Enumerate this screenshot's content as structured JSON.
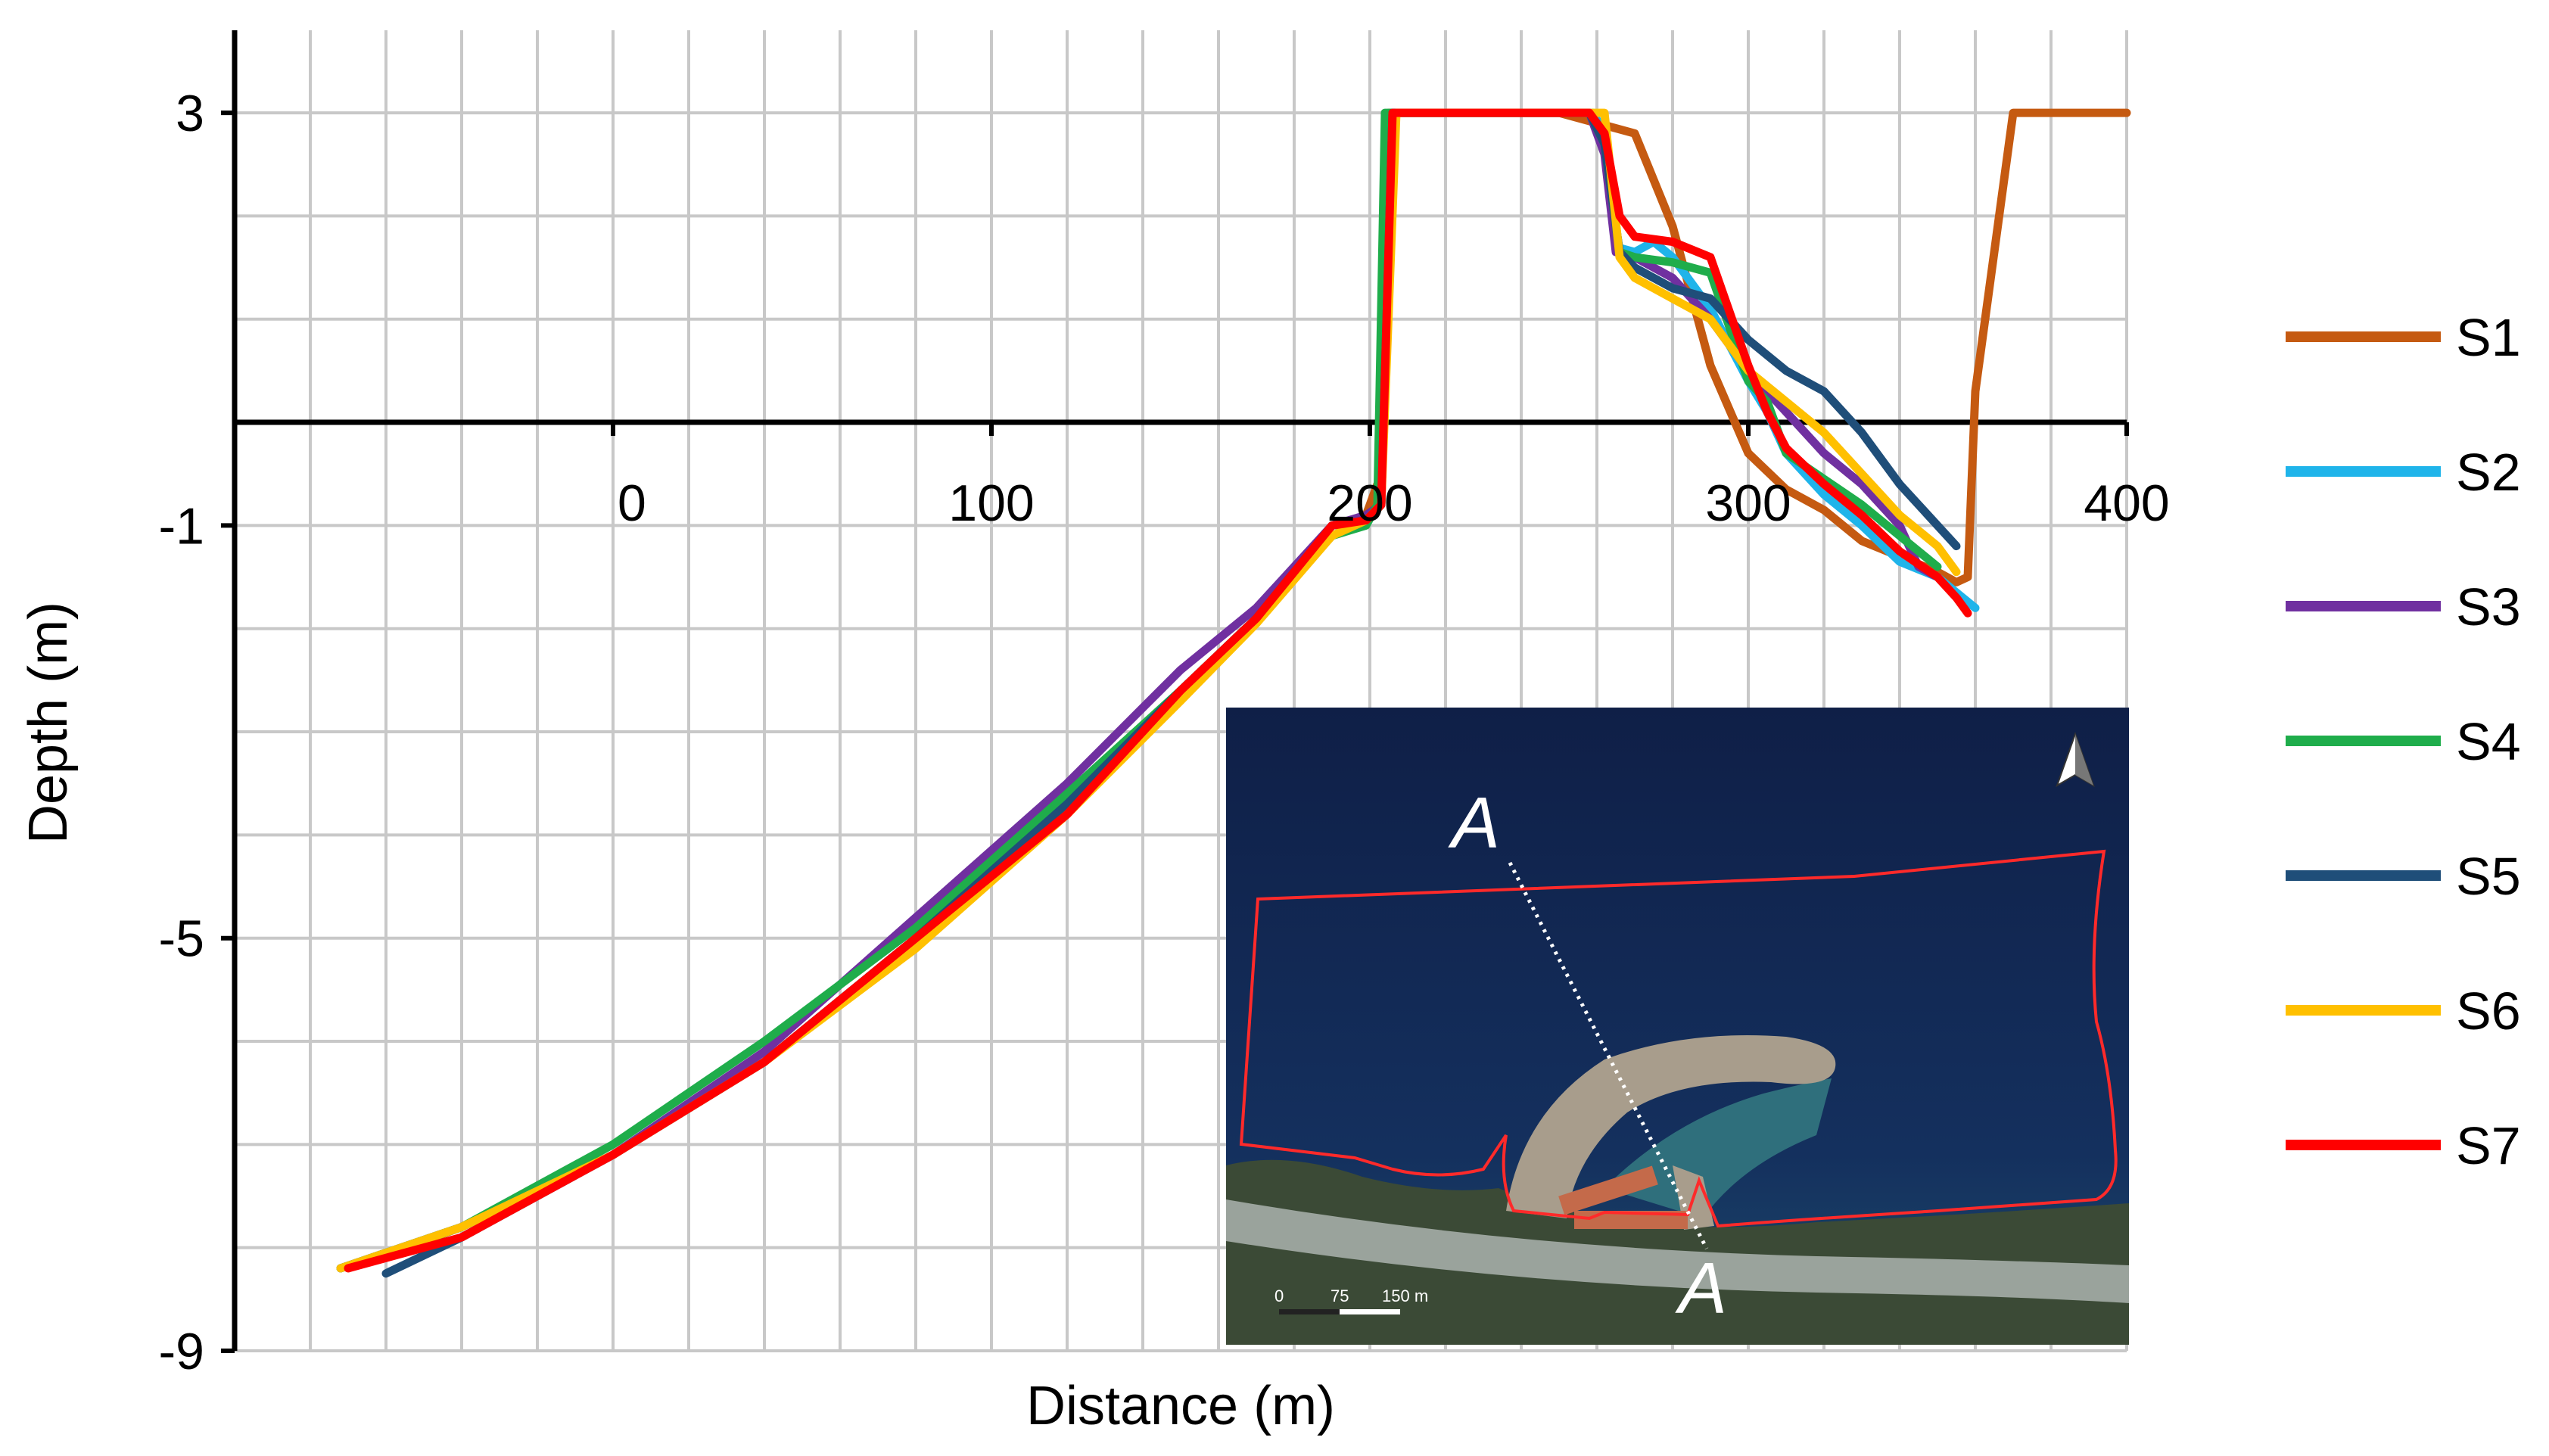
{
  "chart_data": {
    "type": "line",
    "xlabel": "Distance (m)",
    "ylabel": "Depth (m)",
    "xlim": [
      -100,
      400
    ],
    "ylim": [
      -9,
      3.8
    ],
    "x_ticks": [
      {
        "value": 0,
        "label": "0"
      },
      {
        "value": 100,
        "label": "100"
      },
      {
        "value": 200,
        "label": "200"
      },
      {
        "value": 300,
        "label": "300"
      },
      {
        "value": 400,
        "label": "400"
      }
    ],
    "y_ticks": [
      {
        "value": 3,
        "label": "3"
      },
      {
        "value": -1,
        "label": "-1"
      },
      {
        "value": -5,
        "label": "-5"
      },
      {
        "value": -9,
        "label": "-9"
      }
    ],
    "grid": true,
    "legend_position": "right",
    "series": [
      {
        "name": "S1",
        "color": "#C55A11",
        "x": [
          -70,
          -40,
          0,
          40,
          80,
          120,
          150,
          170,
          190,
          195,
          199,
          203,
          205,
          207,
          210,
          220,
          250,
          270,
          280,
          290,
          300,
          310,
          320,
          330,
          340,
          350,
          355,
          358,
          360,
          370,
          400
        ],
        "y": [
          -8.2,
          -7.8,
          -7.1,
          -6.2,
          -5.0,
          -3.7,
          -2.6,
          -1.9,
          -1.0,
          -0.95,
          -0.9,
          -0.5,
          3.0,
          3.0,
          3.0,
          3.0,
          3.0,
          2.8,
          1.9,
          0.55,
          -0.3,
          -0.65,
          -0.85,
          -1.15,
          -1.3,
          -1.45,
          -1.55,
          -1.5,
          0.3,
          3.0,
          3.0
        ]
      },
      {
        "name": "S2",
        "color": "#1FB4EA",
        "x": [
          -72,
          -40,
          0,
          40,
          80,
          120,
          150,
          170,
          190,
          199,
          203,
          206,
          210,
          220,
          250,
          259,
          262,
          265,
          270,
          275,
          280,
          290,
          300,
          305,
          310,
          320,
          330,
          340,
          350,
          355,
          360
        ],
        "y": [
          -8.2,
          -7.8,
          -7.1,
          -6.2,
          -5.0,
          -3.7,
          -2.6,
          -1.9,
          -1.1,
          -0.95,
          -0.8,
          3.0,
          3.0,
          3.0,
          3.0,
          3.0,
          2.8,
          1.7,
          1.65,
          1.75,
          1.6,
          1.1,
          0.4,
          0.1,
          -0.3,
          -0.7,
          -1.0,
          -1.35,
          -1.5,
          -1.65,
          -1.8
        ]
      },
      {
        "name": "S3",
        "color": "#7030A0",
        "x": [
          -72,
          -40,
          0,
          40,
          80,
          120,
          150,
          170,
          190,
          199,
          203,
          206,
          210,
          220,
          250,
          258,
          262,
          265,
          270,
          280,
          290,
          300,
          310,
          320,
          330,
          340,
          345,
          350
        ],
        "y": [
          -8.2,
          -7.8,
          -7.1,
          -6.1,
          -4.8,
          -3.5,
          -2.4,
          -1.8,
          -1.0,
          -0.9,
          -0.8,
          3.0,
          3.0,
          3.0,
          3.0,
          3.0,
          2.6,
          1.65,
          1.6,
          1.4,
          1.0,
          0.5,
          0.1,
          -0.3,
          -0.6,
          -1.0,
          -1.4,
          -1.5
        ]
      },
      {
        "name": "S4",
        "color": "#1FAD4B",
        "x": [
          -72,
          -40,
          0,
          40,
          80,
          120,
          150,
          170,
          190,
          199,
          202,
          204,
          208,
          220,
          250,
          258,
          262,
          266,
          270,
          280,
          290,
          300,
          305,
          310,
          320,
          330,
          340,
          350
        ],
        "y": [
          -8.2,
          -7.8,
          -7.0,
          -6.0,
          -4.9,
          -3.6,
          -2.6,
          -1.9,
          -1.1,
          -1.0,
          -0.8,
          3.0,
          3.0,
          3.0,
          3.0,
          3.0,
          2.7,
          1.65,
          1.6,
          1.55,
          1.45,
          0.4,
          0.2,
          -0.3,
          -0.55,
          -0.8,
          -1.1,
          -1.4
        ]
      },
      {
        "name": "S5",
        "color": "#1F4E79",
        "x": [
          -60,
          -40,
          0,
          40,
          80,
          120,
          150,
          170,
          190,
          199,
          203,
          206,
          210,
          220,
          250,
          258,
          262,
          266,
          270,
          280,
          290,
          300,
          310,
          320,
          330,
          340,
          350,
          355
        ],
        "y": [
          -8.25,
          -7.9,
          -7.1,
          -6.2,
          -5.0,
          -3.7,
          -2.6,
          -1.9,
          -1.0,
          -0.95,
          -0.8,
          3.0,
          3.0,
          3.0,
          3.0,
          3.0,
          2.7,
          1.65,
          1.5,
          1.3,
          1.2,
          0.8,
          0.5,
          0.3,
          -0.1,
          -0.6,
          -1.0,
          -1.2
        ]
      },
      {
        "name": "S6",
        "color": "#FFC000",
        "x": [
          -72,
          -40,
          0,
          40,
          80,
          120,
          150,
          170,
          190,
          199,
          203,
          207,
          212,
          220,
          250,
          262,
          266,
          270,
          280,
          290,
          300,
          310,
          320,
          330,
          340,
          350,
          355
        ],
        "y": [
          -8.2,
          -7.8,
          -7.1,
          -6.2,
          -5.1,
          -3.8,
          -2.7,
          -1.95,
          -1.1,
          -0.95,
          -0.8,
          3.0,
          3.0,
          3.0,
          3.0,
          3.0,
          1.6,
          1.4,
          1.2,
          1.0,
          0.5,
          0.2,
          -0.1,
          -0.5,
          -0.9,
          -1.2,
          -1.45
        ]
      },
      {
        "name": "S7",
        "color": "#FF0000",
        "x": [
          -70,
          -40,
          0,
          40,
          80,
          120,
          150,
          170,
          190,
          199,
          203,
          206,
          209,
          220,
          250,
          258,
          262,
          266,
          270,
          280,
          290,
          300,
          305,
          310,
          320,
          330,
          340,
          350,
          355,
          358
        ],
        "y": [
          -8.2,
          -7.9,
          -7.1,
          -6.2,
          -5.0,
          -3.8,
          -2.6,
          -1.9,
          -1.0,
          -0.95,
          -0.8,
          3.0,
          3.0,
          3.0,
          3.0,
          3.0,
          2.8,
          2.0,
          1.8,
          1.75,
          1.6,
          0.55,
          0.1,
          -0.25,
          -0.6,
          -0.9,
          -1.25,
          -1.5,
          -1.7,
          -1.85
        ]
      }
    ],
    "inset_map": {
      "section_start_label": "A",
      "section_end_label": "A",
      "scale_labels": [
        "0",
        "75",
        "150 m"
      ]
    }
  }
}
